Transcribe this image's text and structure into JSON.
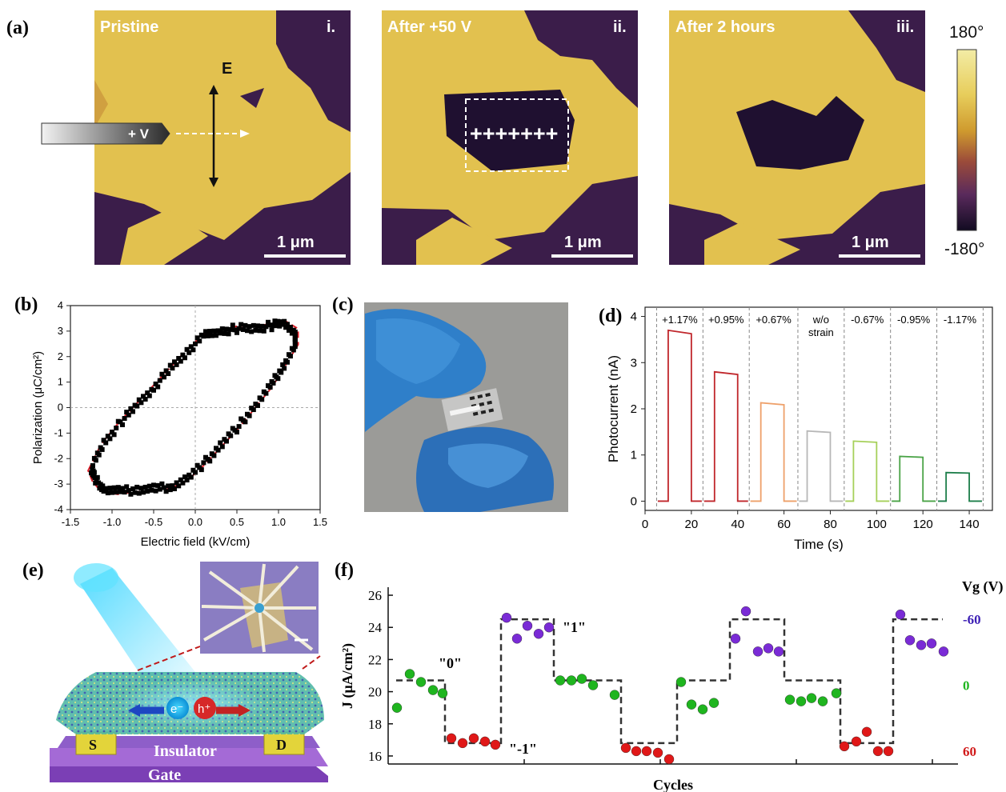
{
  "panel_a": {
    "label": "(a)",
    "maps": [
      {
        "title": "Pristine",
        "index": "i.",
        "scale": "1 μm"
      },
      {
        "title": "After +50 V",
        "index": "ii.",
        "scale": "1 μm"
      },
      {
        "title": "After 2 hours",
        "index": "iii.",
        "scale": "1 μm"
      }
    ],
    "field_label": "E",
    "tip_label": "+ V",
    "charges": "+++++++",
    "colorbar": {
      "max": "180°",
      "min": "-180°",
      "colors": [
        "#f3eca5",
        "#e7cd5b",
        "#cf9a2e",
        "#9b4b3a",
        "#5a2a5c",
        "#120b22"
      ]
    }
  },
  "panel_c": {
    "label": "(c)"
  },
  "panel_e": {
    "label": "(e)",
    "source": "S",
    "drain": "D",
    "insulator": "Insulator",
    "gate": "Gate",
    "electron": "e⁻",
    "hole": "h⁺"
  },
  "chart_data": [
    {
      "panel": "(b)",
      "type": "scatter",
      "xlabel": "Electric field (kV/cm)",
      "ylabel": "Polarization (μC/cm²)",
      "xlim": [
        -1.5,
        1.5
      ],
      "ylim": [
        -4,
        4
      ],
      "xticks": [
        "-1.5",
        "-1.0",
        "-0.5",
        "0.0",
        "0.5",
        "1.0",
        "1.5"
      ],
      "yticks": [
        "-4",
        "-3",
        "-2",
        "-1",
        "0",
        "1",
        "2",
        "3",
        "4"
      ],
      "loop": {
        "upper": [
          [
            -1.25,
            -2.4
          ],
          [
            -1.1,
            -1.4
          ],
          [
            -0.9,
            -0.6
          ],
          [
            -0.7,
            0.1
          ],
          [
            -0.5,
            0.8
          ],
          [
            -0.3,
            1.5
          ],
          [
            -0.1,
            2.2
          ],
          [
            0.1,
            2.8
          ],
          [
            0.3,
            3.0
          ],
          [
            0.5,
            3.1
          ],
          [
            0.7,
            3.1
          ],
          [
            0.9,
            3.2
          ],
          [
            1.05,
            3.3
          ],
          [
            1.2,
            3.0
          ]
        ],
        "lower": [
          [
            1.2,
            2.4
          ],
          [
            1.05,
            1.6
          ],
          [
            0.9,
            0.8
          ],
          [
            0.7,
            0.0
          ],
          [
            0.5,
            -0.8
          ],
          [
            0.3,
            -1.5
          ],
          [
            0.1,
            -2.2
          ],
          [
            -0.1,
            -2.8
          ],
          [
            -0.3,
            -3.1
          ],
          [
            -0.5,
            -3.2
          ],
          [
            -0.7,
            -3.2
          ],
          [
            -0.9,
            -3.3
          ],
          [
            -1.1,
            -3.2
          ],
          [
            -1.2,
            -2.8
          ],
          [
            -1.25,
            -2.4
          ]
        ]
      },
      "fit_color": "#e0202a",
      "marker_color": "#000000"
    },
    {
      "panel": "(d)",
      "type": "line",
      "xlabel": "Time (s)",
      "ylabel": "Photocurrent (nA)",
      "xlim": [
        0,
        150
      ],
      "ylim": [
        -0.2,
        4.2
      ],
      "xticks": [
        "0",
        "20",
        "40",
        "60",
        "80",
        "100",
        "120",
        "140"
      ],
      "yticks": [
        "0",
        "1",
        "2",
        "3",
        "4"
      ],
      "dividers": [
        5,
        25,
        45,
        66,
        86,
        106,
        126,
        146
      ],
      "series": [
        {
          "name": "+1.17%",
          "on": 10,
          "off": 20,
          "value": 3.7,
          "color": "#c0262b"
        },
        {
          "name": "+0.95%",
          "on": 30,
          "off": 40,
          "value": 2.8,
          "color": "#c0262b"
        },
        {
          "name": "+0.67%",
          "on": 50,
          "off": 60,
          "value": 2.13,
          "color": "#eea06a"
        },
        {
          "name": "w/o strain",
          "on": 70,
          "off": 80,
          "value": 1.52,
          "color": "#b7b7b7"
        },
        {
          "name": "-0.67%",
          "on": 90,
          "off": 100,
          "value": 1.3,
          "color": "#a6d05a"
        },
        {
          "name": "-0.95%",
          "on": 110,
          "off": 120,
          "value": 0.97,
          "color": "#4aa346"
        },
        {
          "name": "-1.17%",
          "on": 130,
          "off": 140,
          "value": 0.62,
          "color": "#1d7e4a"
        }
      ],
      "strain_labels": [
        "+1.17%",
        "+0.95%",
        "+0.67%",
        "w/o",
        "strain",
        "-0.67%",
        "-0.95%",
        "-1.17%"
      ]
    },
    {
      "panel": "(f)",
      "type": "scatter",
      "xlabel": "Cycles",
      "ylabel": "J (μA/cm²)",
      "y2label": "Vg (V)",
      "ylim": [
        15.5,
        26.5
      ],
      "yticks": [
        "16",
        "18",
        "20",
        "22",
        "24",
        "26"
      ],
      "y2ticks": [
        "-60",
        "0",
        "60"
      ],
      "states": [
        "\"0\"",
        "\"1\"",
        "\"-1\""
      ],
      "step_levels": [
        20.7,
        16.8,
        24.5,
        20.7,
        16.8,
        20.7,
        24.5,
        20.7,
        16.8,
        24.5
      ],
      "points": [
        {
          "v": 19.0,
          "c": "green"
        },
        {
          "v": 21.1,
          "c": "green"
        },
        {
          "v": 20.6,
          "c": "green"
        },
        {
          "v": 20.1,
          "c": "green"
        },
        {
          "v": 19.9,
          "c": "green"
        },
        {
          "v": 17.1,
          "c": "red"
        },
        {
          "v": 16.8,
          "c": "red"
        },
        {
          "v": 17.1,
          "c": "red"
        },
        {
          "v": 16.9,
          "c": "red"
        },
        {
          "v": 16.7,
          "c": "red"
        },
        {
          "v": 24.6,
          "c": "violet"
        },
        {
          "v": 23.3,
          "c": "violet"
        },
        {
          "v": 24.1,
          "c": "violet"
        },
        {
          "v": 23.6,
          "c": "violet"
        },
        {
          "v": 24.0,
          "c": "violet"
        },
        {
          "v": 20.7,
          "c": "green"
        },
        {
          "v": 20.7,
          "c": "green"
        },
        {
          "v": 20.8,
          "c": "green"
        },
        {
          "v": 20.4,
          "c": "green"
        },
        {
          "v": 19.8,
          "c": "green"
        },
        {
          "v": 16.5,
          "c": "red"
        },
        {
          "v": 16.3,
          "c": "red"
        },
        {
          "v": 16.3,
          "c": "red"
        },
        {
          "v": 16.2,
          "c": "red"
        },
        {
          "v": 15.8,
          "c": "red"
        },
        {
          "v": 20.6,
          "c": "green"
        },
        {
          "v": 19.2,
          "c": "green"
        },
        {
          "v": 18.9,
          "c": "green"
        },
        {
          "v": 19.3,
          "c": "green"
        },
        {
          "v": 23.3,
          "c": "violet"
        },
        {
          "v": 25.0,
          "c": "violet"
        },
        {
          "v": 22.5,
          "c": "violet"
        },
        {
          "v": 22.7,
          "c": "violet"
        },
        {
          "v": 22.5,
          "c": "violet"
        },
        {
          "v": 19.5,
          "c": "green"
        },
        {
          "v": 19.4,
          "c": "green"
        },
        {
          "v": 19.6,
          "c": "green"
        },
        {
          "v": 19.4,
          "c": "green"
        },
        {
          "v": 19.9,
          "c": "green"
        },
        {
          "v": 16.6,
          "c": "red"
        },
        {
          "v": 16.9,
          "c": "red"
        },
        {
          "v": 17.5,
          "c": "red"
        },
        {
          "v": 16.3,
          "c": "red"
        },
        {
          "v": 16.3,
          "c": "red"
        },
        {
          "v": 24.8,
          "c": "violet"
        },
        {
          "v": 23.2,
          "c": "violet"
        },
        {
          "v": 22.9,
          "c": "violet"
        },
        {
          "v": 23.0,
          "c": "violet"
        },
        {
          "v": 22.5,
          "c": "violet"
        }
      ],
      "colors": {
        "green": "#1fb51f",
        "red": "#e01818",
        "violet": "#7a2bd6",
        "y2_neg": "#3c1fb5",
        "y2_zero": "#1fb51f",
        "y2_pos": "#d11a1a"
      }
    }
  ]
}
